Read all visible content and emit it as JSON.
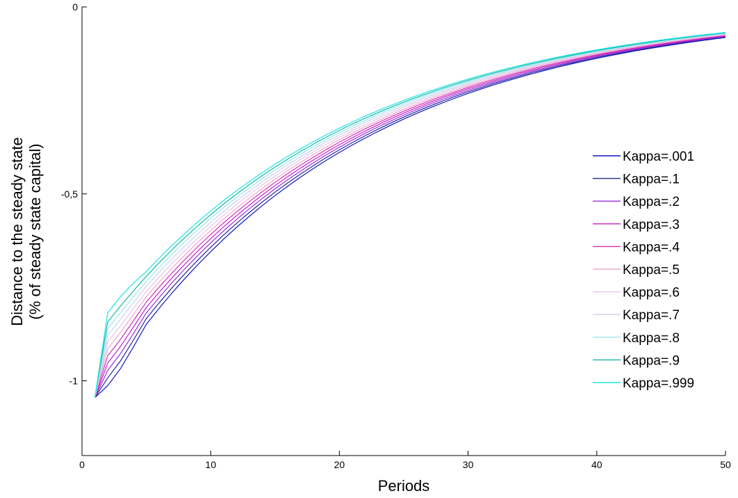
{
  "chart_data": {
    "type": "line",
    "xlabel": "Periods",
    "ylabel_line1": "Distance to the steady state",
    "ylabel_line2": "(% of steady state capital)",
    "xlim": [
      0,
      50
    ],
    "ylim": [
      -1.2,
      0
    ],
    "xticks": [
      0,
      10,
      20,
      30,
      40,
      50
    ],
    "xtick_labels": [
      "0",
      "10",
      "20",
      "30",
      "40",
      "50"
    ],
    "yticks": [
      0,
      -0.5,
      -1
    ],
    "ytick_labels": [
      "0",
      "-0,5",
      "-1"
    ],
    "grid": false,
    "legend_position": "right",
    "series": [
      {
        "name": "Kappa=.001",
        "color": "#1414c8",
        "dip": -0.035,
        "shift": 0.0
      },
      {
        "name": "Kappa=.1",
        "color": "#1e2a8c",
        "dip": -0.03,
        "shift": 0.35
      },
      {
        "name": "Kappa=.2",
        "color": "#9b2de0",
        "dip": -0.026,
        "shift": 0.7
      },
      {
        "name": "Kappa=.3",
        "color": "#c21fc6",
        "dip": -0.022,
        "shift": 1.05
      },
      {
        "name": "Kappa=.4",
        "color": "#d02fb8",
        "dip": -0.018,
        "shift": 1.4
      },
      {
        "name": "Kappa=.5",
        "color": "#f0a8c8",
        "dip": -0.014,
        "shift": 1.75
      },
      {
        "name": "Kappa=.6",
        "color": "#e8c2ec",
        "dip": -0.011,
        "shift": 2.1
      },
      {
        "name": "Kappa=.7",
        "color": "#c8d2ee",
        "dip": -0.008,
        "shift": 2.45
      },
      {
        "name": "Kappa=.8",
        "color": "#9ae6ee",
        "dip": -0.005,
        "shift": 2.8
      },
      {
        "name": "Kappa=.9",
        "color": "#12b8a0",
        "dip": 0.0,
        "shift": 3.15
      },
      {
        "name": "Kappa=.999",
        "color": "#19e6ea",
        "dip": 0.015,
        "shift": 3.5
      }
    ]
  }
}
